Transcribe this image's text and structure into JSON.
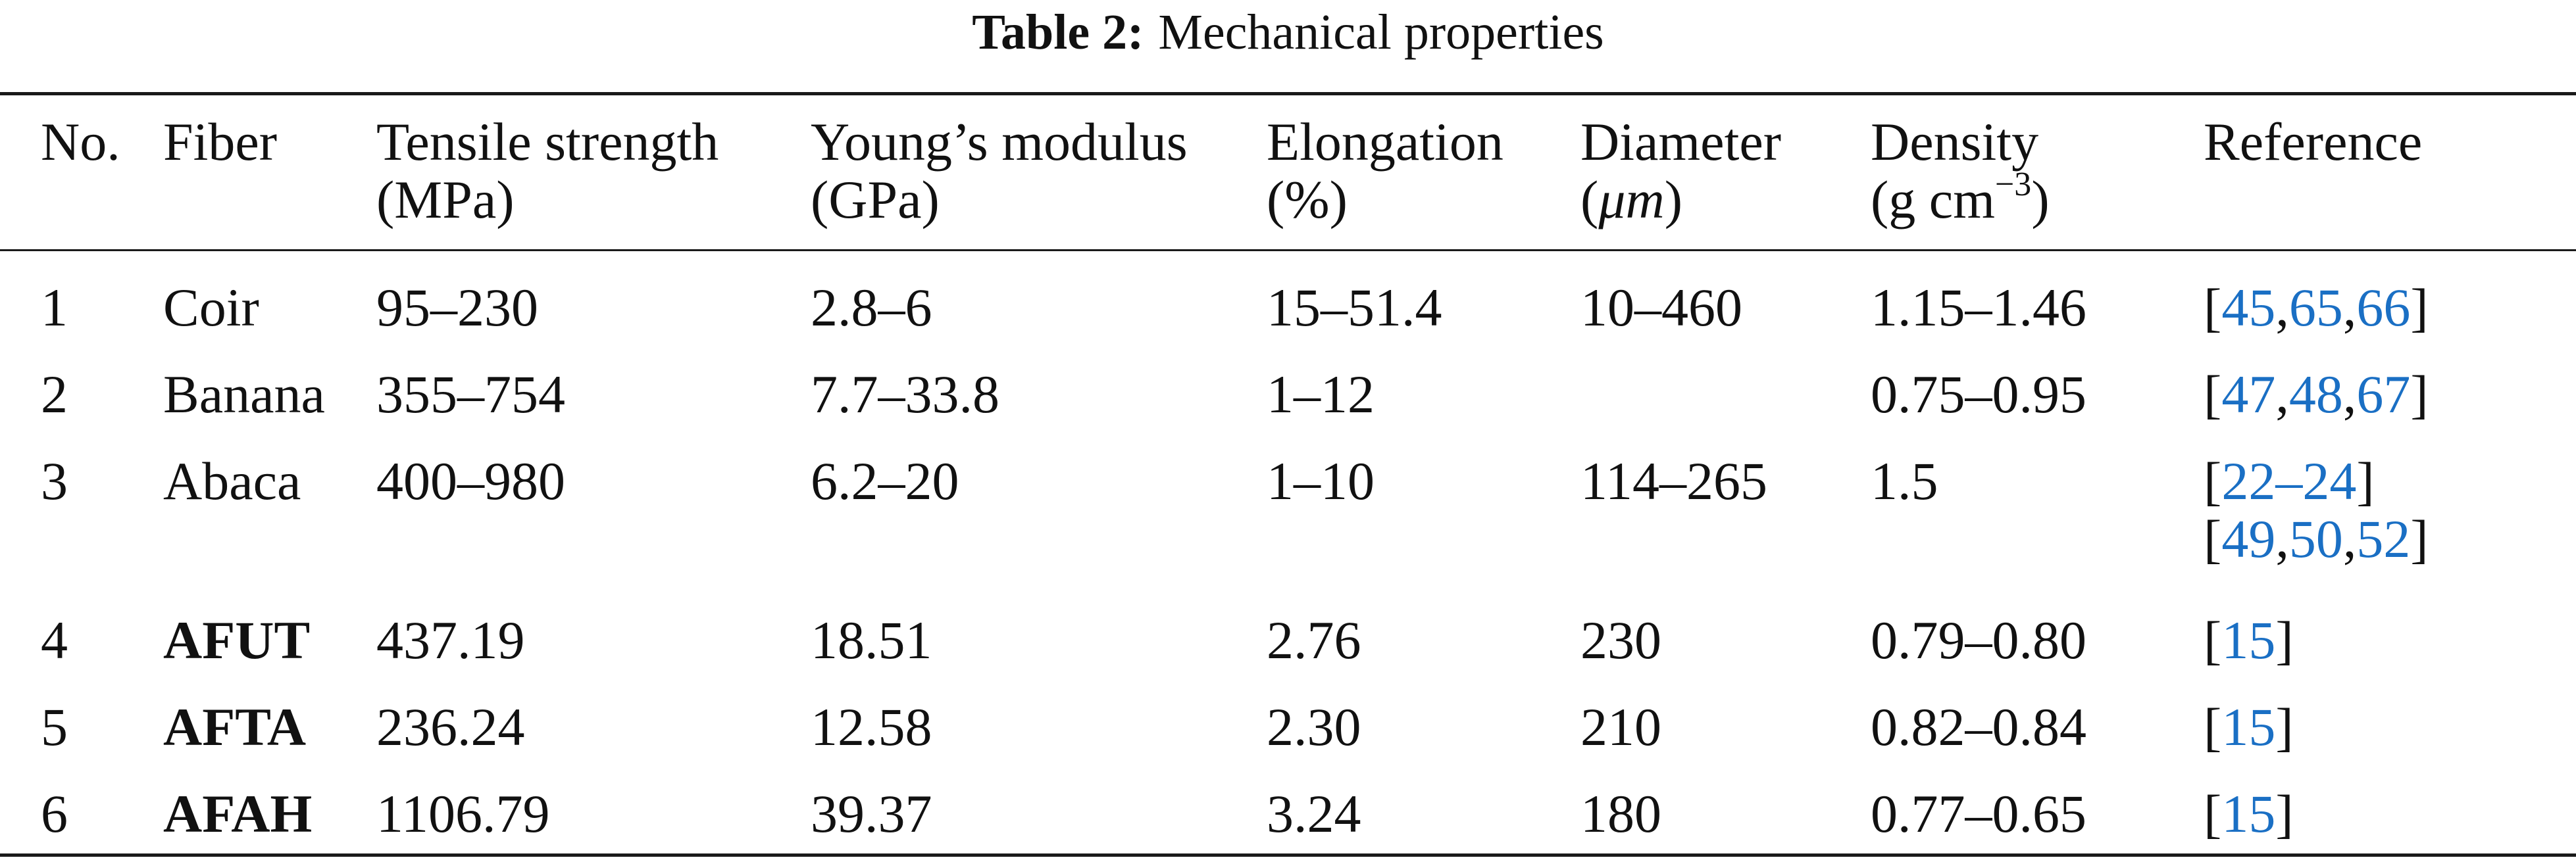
{
  "caption": {
    "label": "Table 2:",
    "title": "Mechanical properties"
  },
  "columns": {
    "no": {
      "line1": "No.",
      "line2": ""
    },
    "fiber": {
      "line1": "Fiber",
      "line2": ""
    },
    "tensile": {
      "line1": "Tensile strength",
      "line2": "(MPa)"
    },
    "young": {
      "line1": "Young’s modulus",
      "line2": "(GPa)"
    },
    "elong": {
      "line1": "Elongation",
      "line2": "(%)"
    },
    "diam": {
      "line1": "Diameter",
      "line2_open": "(",
      "line2_unit": "μm",
      "line2_close": ")"
    },
    "density": {
      "line1": "Density",
      "line2_prefix": "(g cm",
      "line2_sup": "−3",
      "line2_close": ")"
    },
    "ref": {
      "line1": "Reference",
      "line2": ""
    }
  },
  "rows": [
    {
      "no": "1",
      "fiber": "Coir",
      "fiber_bold": false,
      "tensile": "95–230",
      "young": "2.8–6",
      "elong": "15–51.4",
      "diam": "10–460",
      "density": "1.15–1.46",
      "refs": [
        [
          "45",
          "65",
          "66"
        ]
      ]
    },
    {
      "no": "2",
      "fiber": "Banana",
      "fiber_bold": false,
      "tensile": "355–754",
      "young": "7.7–33.8",
      "elong": "1–12",
      "diam": "",
      "density": "0.75–0.95",
      "refs": [
        [
          "47",
          "48",
          "67"
        ]
      ]
    },
    {
      "no": "3",
      "fiber": "Abaca",
      "fiber_bold": false,
      "tensile": "400–980",
      "young": "6.2–20",
      "elong": "1–10",
      "diam": "114–265",
      "density": "1.5",
      "refs": [
        [
          "22–24"
        ],
        [
          "49",
          "50",
          "52"
        ]
      ]
    },
    {
      "no": "4",
      "fiber": "AFUT",
      "fiber_bold": true,
      "tensile": "437.19",
      "young": "18.51",
      "elong": "2.76",
      "diam": "230",
      "density": "0.79–0.80",
      "refs": [
        [
          "15"
        ]
      ]
    },
    {
      "no": "5",
      "fiber": "AFTA",
      "fiber_bold": true,
      "tensile": "236.24",
      "young": "12.58",
      "elong": "2.30",
      "diam": "210",
      "density": "0.82–0.84",
      "refs": [
        [
          "15"
        ]
      ]
    },
    {
      "no": "6",
      "fiber": "AFAH",
      "fiber_bold": true,
      "tensile": "1106.79",
      "young": "39.37",
      "elong": "3.24",
      "diam": "180",
      "density": "0.77–0.65",
      "refs": [
        [
          "15"
        ]
      ]
    }
  ],
  "colors": {
    "link": "#1a6fc4",
    "text": "#111111",
    "rule": "#1a1a1a"
  }
}
